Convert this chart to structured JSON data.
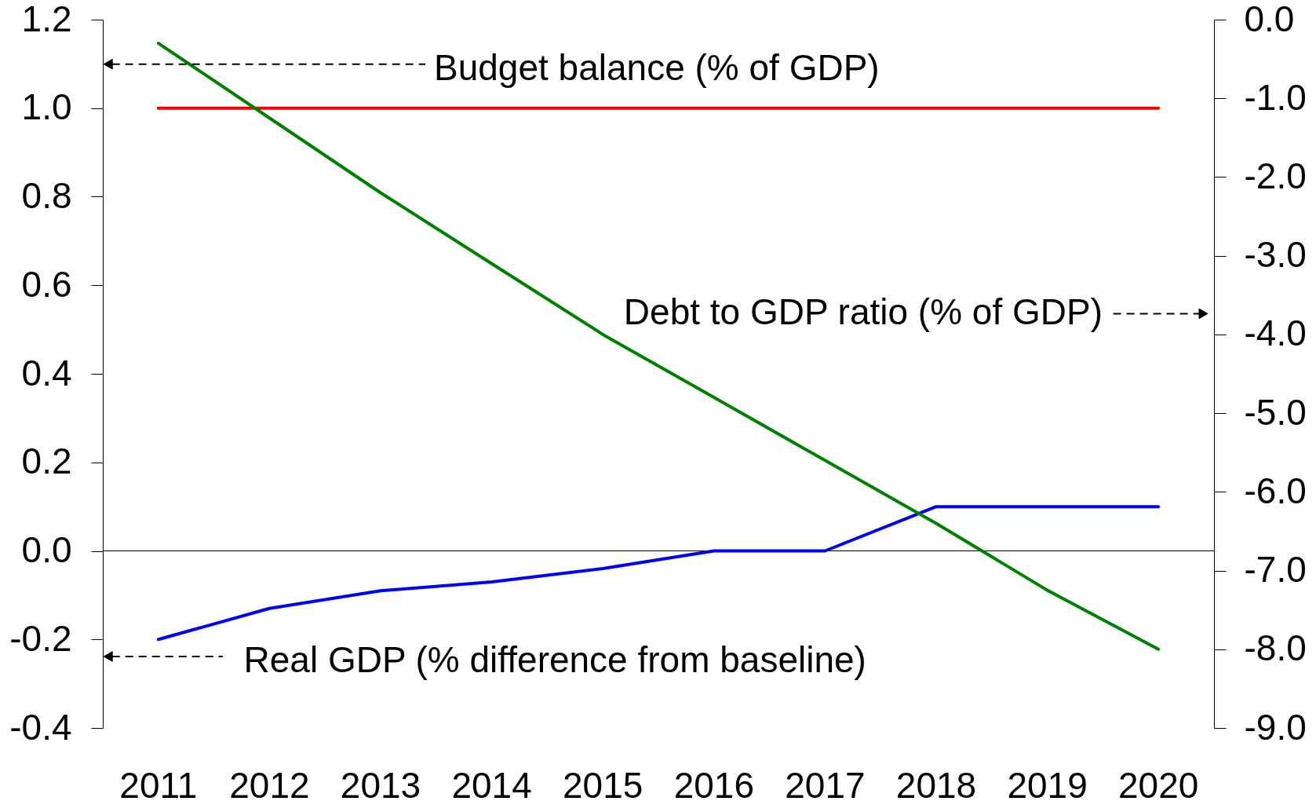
{
  "chart_data": {
    "type": "line",
    "categories": [
      "2011",
      "2012",
      "2013",
      "2014",
      "2015",
      "2016",
      "2017",
      "2018",
      "2019",
      "2020"
    ],
    "series": [
      {
        "color": "#ff0000",
        "values": [
          1.0,
          1.0,
          1.0,
          1.0,
          1.0,
          1.0,
          1.0,
          1.0,
          1.0,
          1.0
        ]
      },
      {
        "color": "#0000ff",
        "values": [
          -0.2,
          -0.13,
          -0.09,
          -0.07,
          -0.04,
          0.0,
          0.0,
          0.1,
          0.1,
          0.1
        ]
      },
      {
        "color": "#008000",
        "axis": "y2",
        "values": [
          -0.3,
          -1.25,
          -2.2,
          -3.1,
          -4.0,
          -4.8,
          -5.6,
          -6.4,
          -7.25,
          -8.0
        ]
      }
    ],
    "ylim": [
      -0.4,
      1.2
    ],
    "yticks": [
      -0.4,
      -0.2,
      {
        "value": 0,
        "label": "0.0"
      },
      0.2,
      0.4,
      0.6,
      0.8,
      {
        "value": 1,
        "label": "1.0"
      },
      1.2
    ],
    "y2lim": [
      -9,
      0
    ],
    "y2ticks": [
      {
        "value": -9,
        "label": "-9.0"
      },
      {
        "value": -8,
        "label": "-8.0"
      },
      {
        "value": -7,
        "label": "-7.0"
      },
      {
        "value": -6,
        "label": "-6.0"
      },
      {
        "value": -5,
        "label": "-5.0"
      },
      {
        "value": -4,
        "label": "-4.0"
      },
      {
        "value": -3,
        "label": "-3.0"
      },
      {
        "value": -2,
        "label": "-2.0"
      },
      {
        "value": -1,
        "label": "-1.0"
      },
      {
        "value": 0,
        "label": "0.0"
      }
    ],
    "ref_lines": [
      {
        "axis": "y",
        "value": 0,
        "color": "#000000"
      }
    ],
    "annotations": [
      "Budget balance (% of GDP)",
      "Debt to GDP ratio (% of GDP)",
      "Real GDP (% difference from baseline)"
    ],
    "grid": false,
    "legend": false,
    "marker": "none",
    "line_style": "solid"
  }
}
